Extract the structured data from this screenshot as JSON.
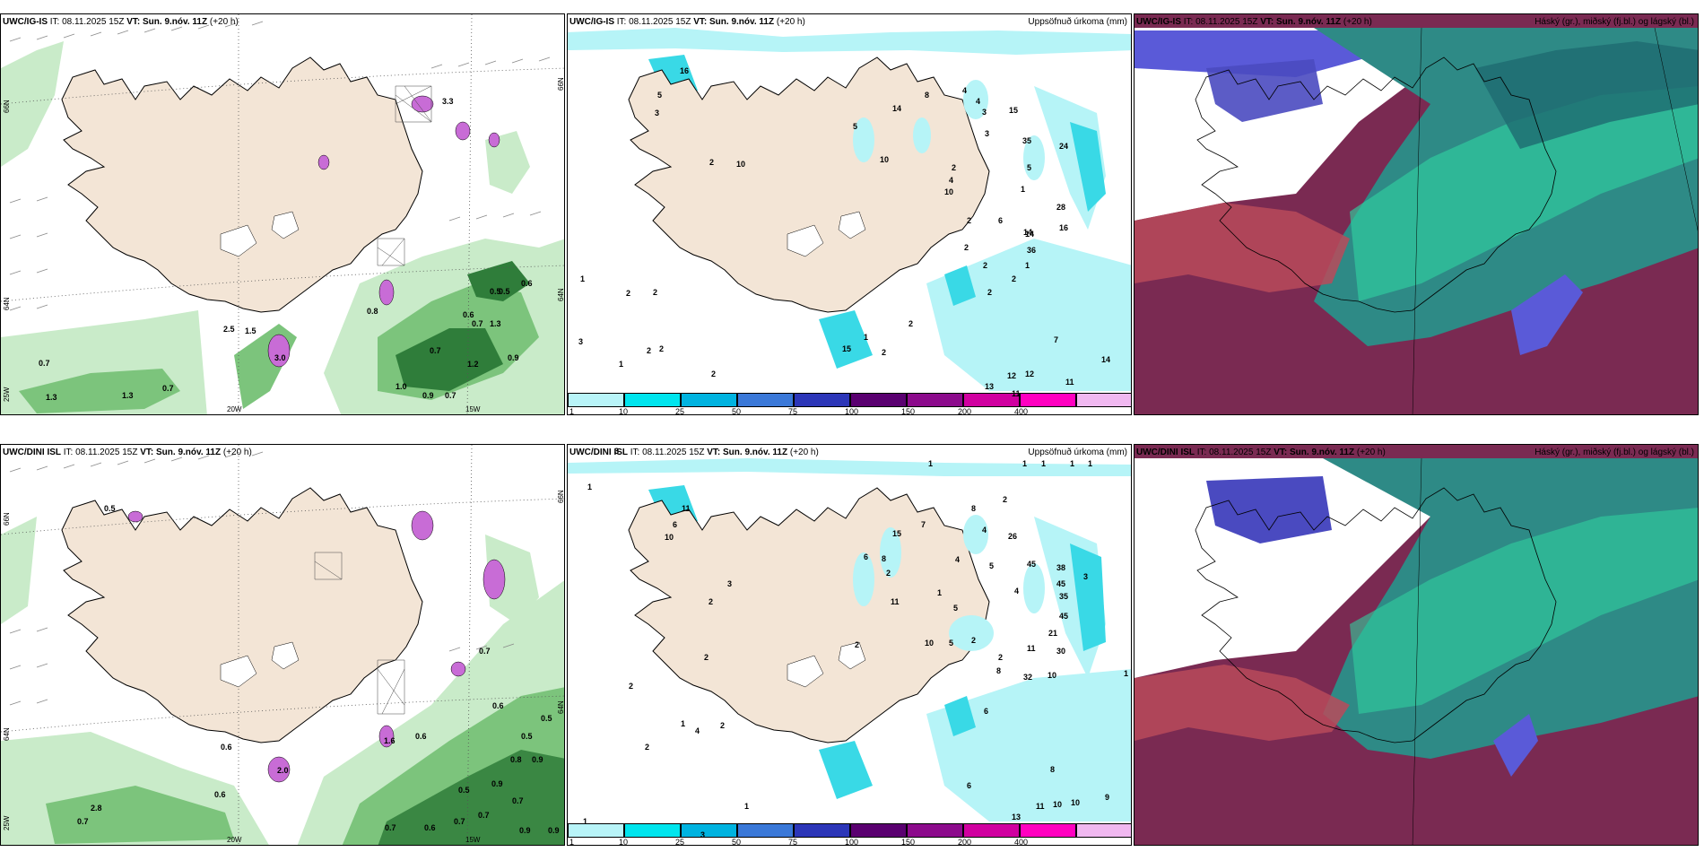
{
  "panels": {
    "p1": {
      "model": "UWC/IG-IS",
      "it_label": "IT:",
      "it_value": "08.11.2025 15Z",
      "vt_label": "VT:",
      "vt_value": "Sun. 9.nóv. 11Z",
      "lead": "(+20 h)",
      "axis": {
        "lat1": "66N",
        "lat2": "64N",
        "lat3": "25W",
        "lon1": "20W",
        "lon2": "15W",
        "lat_r1": "66N",
        "lat_r2": "64N"
      },
      "values": [
        "1.5",
        "2.5",
        "3.0",
        "0.7",
        "1.3",
        "0.8",
        "0.5",
        "0.6",
        "0.7",
        "1.3",
        "0.5",
        "0.6",
        "0.7",
        "1.2",
        "0.9",
        "1.0",
        "0.7",
        "1.3",
        "0.7",
        "0.9",
        "3.3"
      ]
    },
    "p2": {
      "model": "UWC/IG-IS",
      "it_label": "IT:",
      "it_value": "08.11.2025 15Z",
      "vt_label": "VT:",
      "vt_value": "Sun. 9.nóv. 11Z",
      "lead": "(+20 h)",
      "right_title": "Uppsöfnuð úrkoma (mm)",
      "legend_ticks": [
        "1",
        "10",
        "25",
        "50",
        "75",
        "100",
        "150",
        "200",
        "400"
      ],
      "values": [
        "16",
        "5",
        "3",
        "5",
        "14",
        "8",
        "4",
        "4",
        "3",
        "10",
        "15",
        "3",
        "35",
        "24",
        "5",
        "1",
        "28",
        "16",
        "14",
        "2",
        "10",
        "10",
        "2",
        "4",
        "2",
        "6",
        "14",
        "36",
        "1",
        "2",
        "2",
        "2",
        "2",
        "2",
        "1",
        "2",
        "2",
        "3",
        "1",
        "2",
        "2",
        "1",
        "2",
        "15",
        "7",
        "14",
        "12",
        "12",
        "13",
        "11",
        "11",
        "2"
      ]
    },
    "p3": {
      "model": "UWC/IG-IS",
      "it_label": "IT:",
      "it_value": "08.11.2025 15Z",
      "vt_label": "VT:",
      "vt_value": "Sun. 9.nóv. 11Z",
      "lead": "(+20 h)",
      "right_title": "Háský (gr.), miðský (fj.bl.) og lágský (bl.)"
    },
    "p4": {
      "model": "UWC/DINI ISL",
      "it_label": "IT:",
      "it_value": "08.11.2025 15Z",
      "vt_label": "VT:",
      "vt_value": "Sun. 9.nóv. 11Z",
      "lead": "(+20 h)",
      "axis": {
        "lat1": "66N",
        "lat2": "64N",
        "lat3": "25W",
        "lon1": "20W",
        "lon2": "15W",
        "lat_r1": "66N",
        "lat_r2": "64N"
      },
      "values": [
        "0.5",
        "0.6",
        "1.6",
        "0.6",
        "0.7",
        "0.5",
        "0.6",
        "0.5",
        "0.8",
        "0.9",
        "0.9",
        "0.7",
        "0.5",
        "0.7",
        "0.7",
        "0.6",
        "0.7",
        "0.9",
        "0.9",
        "0.6",
        "2.8",
        "0.7",
        "2.0"
      ]
    },
    "p5": {
      "model": "UWC/DINI ISL",
      "it_label": "IT:",
      "it_value": "08.11.2025 15Z",
      "vt_label": "VT:",
      "vt_value": "Sun. 9.nóv. 11Z",
      "lead": "(+20 h)",
      "right_title": "Uppsöfnuð úrkoma (mm)",
      "legend_ticks": [
        "1",
        "10",
        "25",
        "50",
        "75",
        "100",
        "150",
        "200",
        "400"
      ],
      "values": [
        "3",
        "1",
        "1",
        "1",
        "1",
        "1",
        "1",
        "8",
        "2",
        "11",
        "10",
        "6",
        "15",
        "7",
        "26",
        "4",
        "45",
        "38",
        "45",
        "35",
        "3",
        "6",
        "8",
        "2",
        "4",
        "5",
        "4",
        "11",
        "5",
        "1",
        "45",
        "21",
        "30",
        "10",
        "2",
        "3",
        "2",
        "10",
        "5",
        "2",
        "1",
        "2",
        "8",
        "32",
        "11",
        "6",
        "2",
        "1",
        "4",
        "2",
        "2",
        "3",
        "8",
        "6",
        "11",
        "10",
        "10",
        "9",
        "13",
        "1",
        "1",
        "2"
      ]
    },
    "p6": {
      "model": "UWC/DINI ISL",
      "it_label": "IT:",
      "it_value": "08.11.2025 15Z",
      "vt_label": "VT:",
      "vt_value": "Sun. 9.nóv. 11Z",
      "lead": "(+20 h)",
      "right_title": "Háský (gr.), miðský (fj.bl.) og lágský (bl.)"
    }
  },
  "colors": {
    "land": "#f3e5d6",
    "green_light": "#c9ebc9",
    "green_mid": "#7cc47c",
    "green_dark": "#2f7d3a",
    "purple": "#c86cd6",
    "cyan_light": "#b6f4f7",
    "cyan_mid": "#39d9e6",
    "legend": [
      "#b8f4f8",
      "#00e5ee",
      "#00b3e0",
      "#3a78d8",
      "#2c36b8",
      "#5a0070",
      "#8c0a8c",
      "#d000a0",
      "#ff00c0",
      "#f0b8f0"
    ],
    "cloud_high": "#2e8a86",
    "cloud_mid": "#30d0a0",
    "cloud_low": "#7a2a52",
    "cloud_blue": "#5a5ad8"
  }
}
